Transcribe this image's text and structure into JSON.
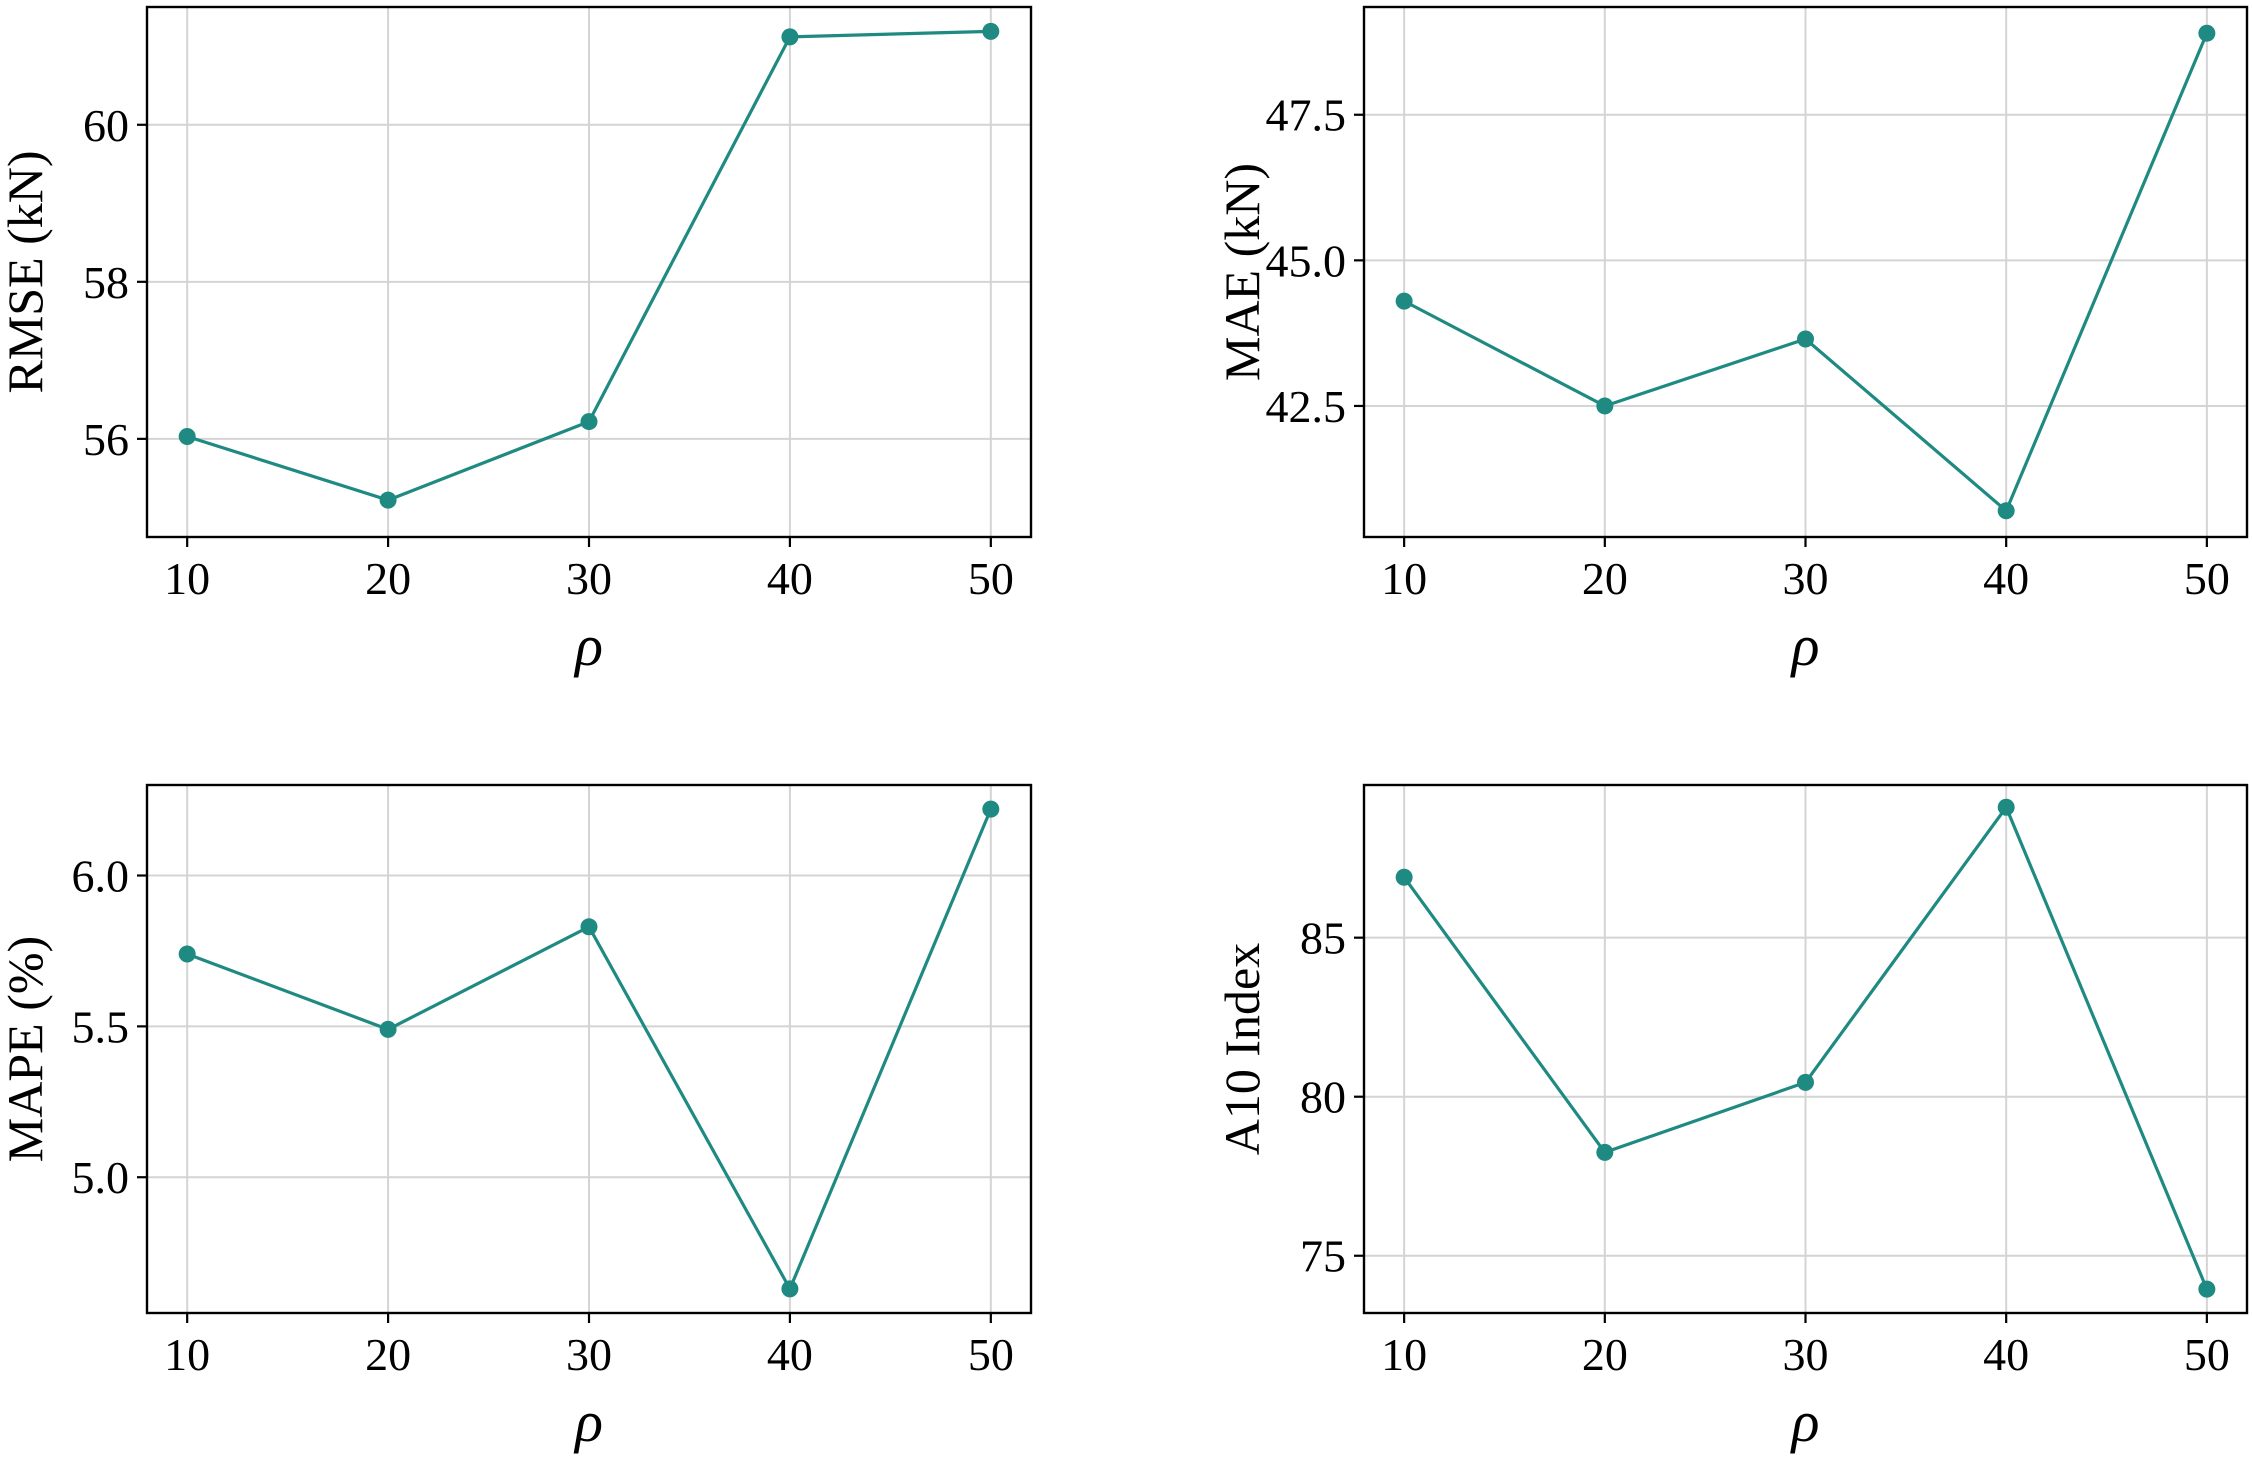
{
  "chart_data": [
    {
      "type": "line",
      "title": "",
      "xlabel": "ρ",
      "ylabel": "RMSE (kN)",
      "x": [
        10,
        20,
        30,
        40,
        50
      ],
      "series": [
        {
          "name": "RMSE",
          "values": [
            56.03,
            55.22,
            56.22,
            61.12,
            61.19
          ]
        }
      ],
      "xlim": [
        8,
        52
      ],
      "ylim": [
        54.75,
        61.5
      ],
      "xticks": [
        10,
        20,
        30,
        40,
        50
      ],
      "yticks": [
        56,
        58,
        60
      ],
      "ytick_labels": [
        "56",
        "58",
        "60"
      ],
      "grid": true
    },
    {
      "type": "line",
      "title": "",
      "xlabel": "ρ",
      "ylabel": "MAE (kN)",
      "x": [
        10,
        20,
        30,
        40,
        50
      ],
      "series": [
        {
          "name": "MAE",
          "values": [
            44.3,
            42.5,
            43.65,
            40.7,
            48.9
          ]
        }
      ],
      "xlim": [
        8,
        52
      ],
      "ylim": [
        40.25,
        49.35
      ],
      "xticks": [
        10,
        20,
        30,
        40,
        50
      ],
      "yticks": [
        42.5,
        45.0,
        47.5
      ],
      "ytick_labels": [
        "42.5",
        "45.0",
        "47.5"
      ],
      "grid": true
    },
    {
      "type": "line",
      "title": "",
      "xlabel": "ρ",
      "ylabel": "MAPE (%)",
      "x": [
        10,
        20,
        30,
        40,
        50
      ],
      "series": [
        {
          "name": "MAPE",
          "values": [
            5.74,
            5.49,
            5.83,
            4.63,
            6.22
          ]
        }
      ],
      "xlim": [
        8,
        52
      ],
      "ylim": [
        4.55,
        6.3
      ],
      "xticks": [
        10,
        20,
        30,
        40,
        50
      ],
      "yticks": [
        5.0,
        5.5,
        6.0
      ],
      "ytick_labels": [
        "5.0",
        "5.5",
        "6.0"
      ],
      "grid": true
    },
    {
      "type": "line",
      "title": "",
      "xlabel": "ρ",
      "ylabel": "A10 Index",
      "x": [
        10,
        20,
        30,
        40,
        50
      ],
      "series": [
        {
          "name": "A10 Index",
          "values": [
            86.9,
            78.25,
            80.45,
            89.1,
            73.95
          ]
        }
      ],
      "xlim": [
        8,
        52
      ],
      "ylim": [
        73.2,
        89.8
      ],
      "xticks": [
        10,
        20,
        30,
        40,
        50
      ],
      "yticks": [
        75,
        80,
        85
      ],
      "ytick_labels": [
        "75",
        "80",
        "85"
      ],
      "grid": true
    }
  ],
  "colors": {
    "series": "#1f8a82",
    "marker": "#1f8a82"
  }
}
